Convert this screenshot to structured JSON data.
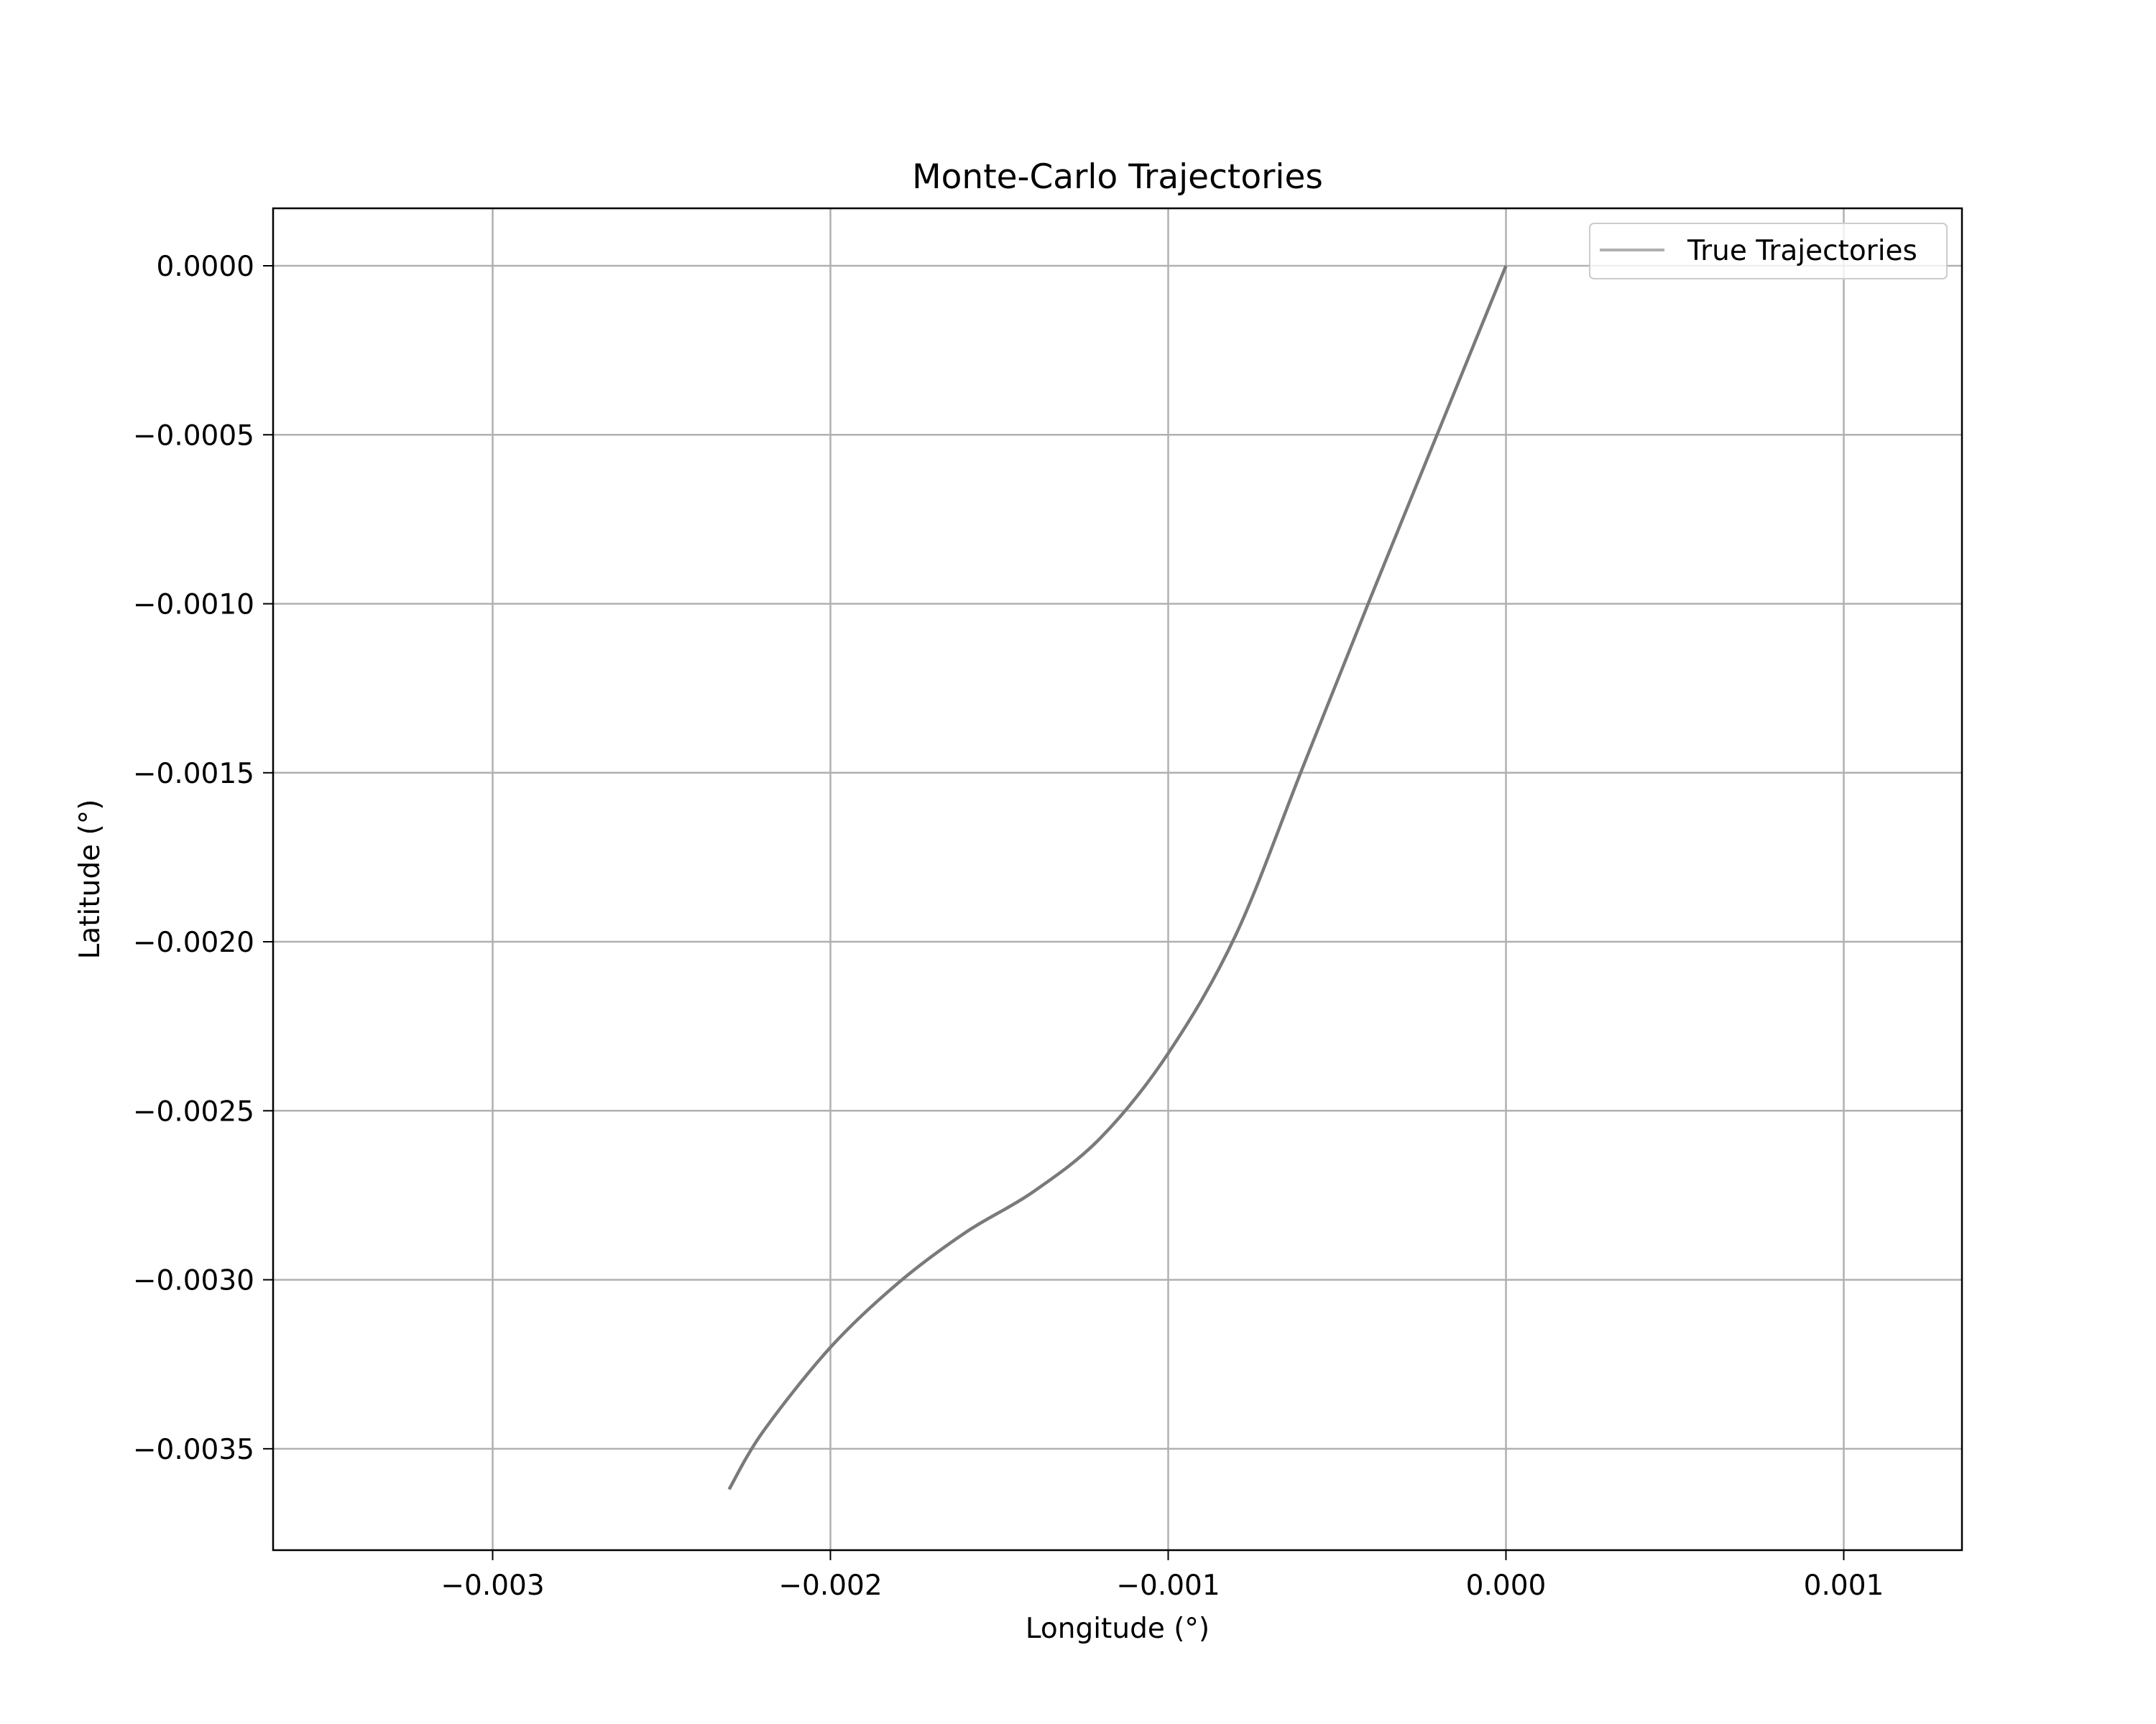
{
  "chart_data": {
    "type": "line",
    "title": "Monte-Carlo Trajectories",
    "xlabel": "Longitude (°)",
    "ylabel": "Latitude (°)",
    "xlim": [
      -0.00365,
      0.00135
    ],
    "ylim": [
      -0.0038,
      0.00017
    ],
    "xticks": [
      -0.003,
      -0.002,
      -0.001,
      0.0,
      0.001
    ],
    "xtick_labels": [
      "−0.003",
      "−0.002",
      "−0.001",
      "0.000",
      "0.001"
    ],
    "yticks": [
      0.0,
      -0.0005,
      -0.001,
      -0.0015,
      -0.002,
      -0.0025,
      -0.003,
      -0.0035
    ],
    "ytick_labels": [
      "0.0000",
      "−0.0005",
      "−0.0010",
      "−0.0015",
      "−0.0020",
      "−0.0025",
      "−0.0030",
      "−0.0035"
    ],
    "grid": true,
    "legend": {
      "position": "top-right",
      "entries": [
        "True Trajectories"
      ]
    },
    "series": [
      {
        "name": "True Trajectories",
        "color": "#7a7a7a",
        "x": [
          0.0,
          -0.0002,
          -0.0004,
          -0.0006,
          -0.0008,
          -0.001,
          -0.0012,
          -0.0014,
          -0.0016,
          -0.0018,
          -0.002,
          -0.0022,
          -0.0023
        ],
        "y": [
          0.0,
          -0.00049,
          -0.00098,
          -0.00148,
          -0.00198,
          -0.00233,
          -0.00258,
          -0.00274,
          -0.00286,
          -0.00301,
          -0.0032,
          -0.00345,
          -0.00362
        ]
      }
    ]
  }
}
